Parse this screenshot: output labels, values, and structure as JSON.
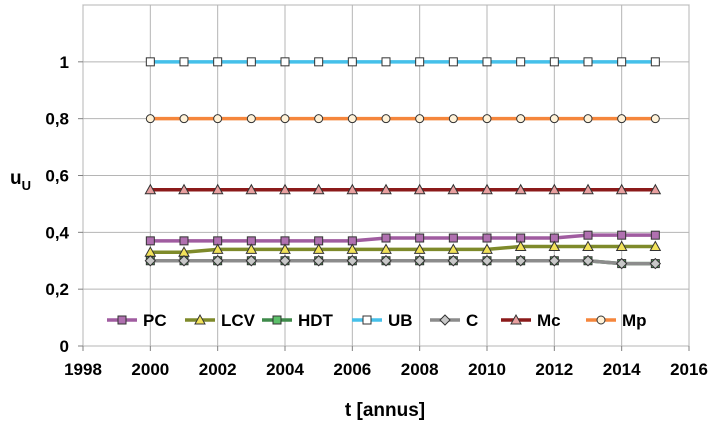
{
  "chart_data": {
    "type": "line",
    "xlabel": "t [annus]",
    "ylabel": "u",
    "ylabel_sub": "U",
    "xlim": [
      1998,
      2016
    ],
    "ylim": [
      0,
      1.2
    ],
    "xticks": [
      "1998",
      "2000",
      "2002",
      "2004",
      "2006",
      "2008",
      "2010",
      "2012",
      "2014",
      "2016"
    ],
    "yticks": [
      "0",
      "0,2",
      "0,4",
      "0,6",
      "0,8",
      "1"
    ],
    "grid": true,
    "legend_position": "bottom",
    "x": [
      2000,
      2001,
      2002,
      2003,
      2004,
      2005,
      2006,
      2007,
      2008,
      2009,
      2010,
      2011,
      2012,
      2013,
      2014,
      2015
    ],
    "series": [
      {
        "name": "PC",
        "line_color": "#A05CA0",
        "marker": "square",
        "marker_fill": "#B070B0",
        "values": [
          0.37,
          0.37,
          0.37,
          0.37,
          0.37,
          0.37,
          0.37,
          0.38,
          0.38,
          0.38,
          0.38,
          0.38,
          0.38,
          0.39,
          0.39,
          0.39
        ]
      },
      {
        "name": "LCV",
        "line_color": "#7E8A2A",
        "marker": "triangle",
        "marker_fill": "#F2E25A",
        "values": [
          0.33,
          0.33,
          0.34,
          0.34,
          0.34,
          0.34,
          0.34,
          0.34,
          0.34,
          0.34,
          0.34,
          0.35,
          0.35,
          0.35,
          0.35,
          0.35
        ]
      },
      {
        "name": "HDT",
        "line_color": "#3E8A4A",
        "marker": "square",
        "marker_fill": "#5CC06A",
        "values": [
          0.3,
          0.3,
          0.3,
          0.3,
          0.3,
          0.3,
          0.3,
          0.3,
          0.3,
          0.3,
          0.3,
          0.3,
          0.3,
          0.3,
          0.29,
          0.29
        ]
      },
      {
        "name": "UB",
        "line_color": "#45C0EA",
        "marker": "square",
        "marker_fill": "#FFFFFF",
        "values": [
          1.0,
          1.0,
          1.0,
          1.0,
          1.0,
          1.0,
          1.0,
          1.0,
          1.0,
          1.0,
          1.0,
          1.0,
          1.0,
          1.0,
          1.0,
          1.0
        ]
      },
      {
        "name": "C",
        "line_color": "#8C8C8C",
        "marker": "diamond",
        "marker_fill": "#C8C8C8",
        "values": [
          0.3,
          0.3,
          0.3,
          0.3,
          0.3,
          0.3,
          0.3,
          0.3,
          0.3,
          0.3,
          0.3,
          0.3,
          0.3,
          0.3,
          0.29,
          0.29
        ]
      },
      {
        "name": "Mc",
        "line_color": "#8B1A1A",
        "marker": "triangle",
        "marker_fill": "#E8A0A0",
        "values": [
          0.55,
          0.55,
          0.55,
          0.55,
          0.55,
          0.55,
          0.55,
          0.55,
          0.55,
          0.55,
          0.55,
          0.55,
          0.55,
          0.55,
          0.55,
          0.55
        ]
      },
      {
        "name": "Mp",
        "line_color": "#F5863C",
        "marker": "circle",
        "marker_fill": "#FFF2D8",
        "values": [
          0.8,
          0.8,
          0.8,
          0.8,
          0.8,
          0.8,
          0.8,
          0.8,
          0.8,
          0.8,
          0.8,
          0.8,
          0.8,
          0.8,
          0.8,
          0.8
        ]
      }
    ]
  }
}
